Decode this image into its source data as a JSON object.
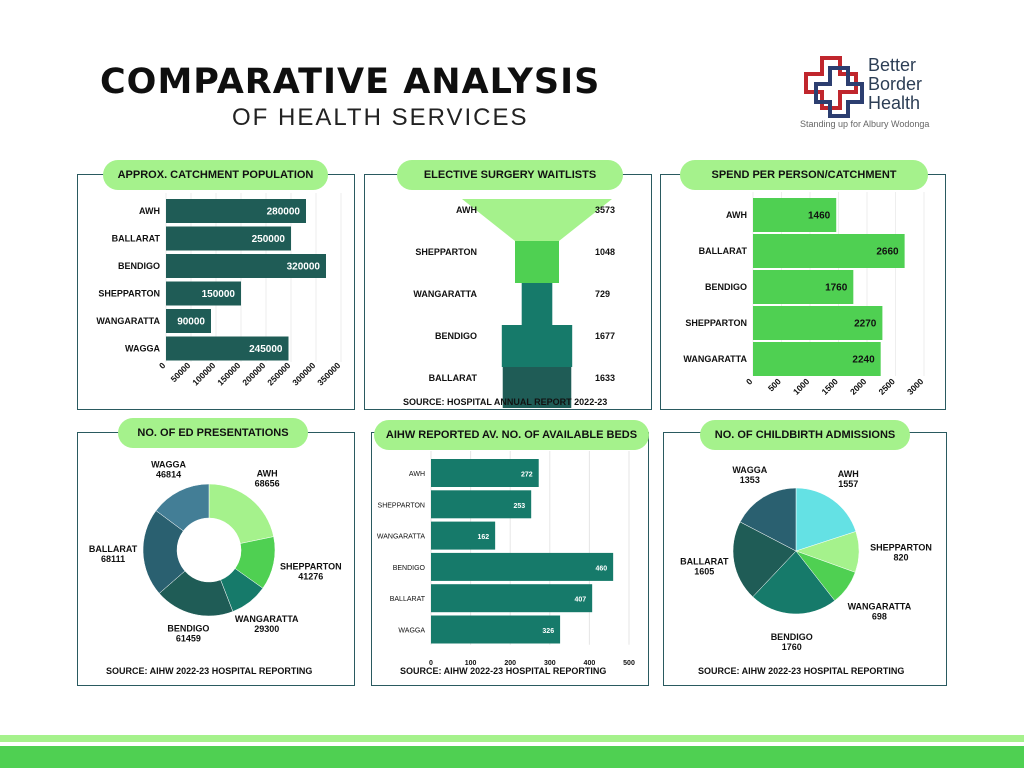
{
  "header": {
    "title": "COMPARATIVE ANALYSIS",
    "subtitle": "OF HEALTH SERVICES"
  },
  "logo": {
    "line1": "Better",
    "line2": "Border",
    "line3": "Health",
    "tagline": "Standing up for Albury Wodonga"
  },
  "colors": {
    "dark": "#1f5c56",
    "teal": "#167a6a",
    "green": "#4fd052",
    "light_green": "#a5f28c",
    "cyan": "#64e1e4",
    "slate": "#2a6070",
    "steel": "#437e96"
  },
  "chart_data": [
    {
      "id": "catchment",
      "type": "bar",
      "orientation": "horizontal",
      "title": "APPROX. CATCHMENT POPULATION",
      "categories": [
        "AWH",
        "BALLARAT",
        "BENDIGO",
        "SHEPPARTON",
        "WANGARATTA",
        "WAGGA"
      ],
      "values": [
        280000,
        250000,
        320000,
        150000,
        90000,
        245000
      ],
      "value_labels": [
        "280000",
        "250000",
        "320000",
        "150000",
        "90000",
        "245000"
      ],
      "ticks": [
        0,
        50000,
        100000,
        150000,
        200000,
        250000,
        300000,
        350000
      ],
      "tick_labels": [
        "0",
        "50000",
        "100000",
        "150000",
        "200000",
        "250000",
        "300000",
        "350000"
      ],
      "xlim": [
        0,
        350000
      ]
    },
    {
      "id": "waitlists",
      "type": "funnel",
      "title": "ELECTIVE SURGERY WAITLISTS",
      "categories": [
        "AWH",
        "SHEPPARTON",
        "WANGARATTA",
        "BENDIGO",
        "BALLARAT"
      ],
      "values": [
        3573,
        1048,
        729,
        1677,
        1633
      ],
      "value_labels": [
        "3573",
        "1048",
        "729",
        "1677",
        "1633"
      ],
      "source": "SOURCE: HOSPITAL ANNUAL REPORT 2022-23"
    },
    {
      "id": "spend",
      "type": "bar",
      "orientation": "horizontal",
      "title": "SPEND PER PERSON/CATCHMENT",
      "categories": [
        "AWH",
        "BALLARAT",
        "BENDIGO",
        "SHEPPARTON",
        "WANGARATTA"
      ],
      "values": [
        1460,
        2660,
        1760,
        2270,
        2240
      ],
      "value_labels": [
        "1460",
        "2660",
        "1760",
        "2270",
        "2240"
      ],
      "ticks": [
        0,
        500,
        1000,
        1500,
        2000,
        2500,
        3000
      ],
      "tick_labels": [
        "0",
        "500",
        "1000",
        "1500",
        "2000",
        "2500",
        "3000"
      ],
      "xlim": [
        0,
        3000
      ]
    },
    {
      "id": "ed",
      "type": "pie",
      "donut": true,
      "title": "NO. OF ED PRESENTATIONS",
      "slices": [
        {
          "name": "AWH",
          "value": 68656,
          "label": "68656"
        },
        {
          "name": "SHEPPARTON",
          "value": 41276,
          "label": "41276"
        },
        {
          "name": "WANGARATTA",
          "value": 29300,
          "label": "29300"
        },
        {
          "name": "BENDIGO",
          "value": 61459,
          "label": "61459"
        },
        {
          "name": "BALLARAT",
          "value": 68111,
          "label": "68111"
        },
        {
          "name": "WAGGA",
          "value": 46814,
          "label": "46814"
        }
      ],
      "source": "SOURCE: AIHW 2022-23 HOSPITAL REPORTING"
    },
    {
      "id": "beds",
      "type": "bar",
      "orientation": "horizontal",
      "title": "AIHW REPORTED AV. NO. OF AVAILABLE BEDS",
      "categories": [
        "AWH",
        "SHEPPARTON",
        "WANGARATTA",
        "BENDIGO",
        "BALLARAT",
        "WAGGA"
      ],
      "values": [
        272,
        253,
        162,
        460,
        407,
        326
      ],
      "value_labels": [
        "272",
        "253",
        "162",
        "460",
        "407",
        "326"
      ],
      "ticks": [
        0,
        100,
        200,
        300,
        400,
        500
      ],
      "tick_labels": [
        "0",
        "100",
        "200",
        "300",
        "400",
        "500"
      ],
      "xlim": [
        0,
        500
      ],
      "grid": true,
      "source": "SOURCE: AIHW 2022-23 HOSPITAL REPORTING"
    },
    {
      "id": "childbirth",
      "type": "pie",
      "donut": false,
      "title": "NO. OF CHILDBIRTH ADMISSIONS",
      "slices": [
        {
          "name": "AWH",
          "value": 1557,
          "label": "1557"
        },
        {
          "name": "SHEPPARTON",
          "value": 820,
          "label": "820"
        },
        {
          "name": "WANGARATTA",
          "value": 698,
          "label": "698"
        },
        {
          "name": "BENDIGO",
          "value": 1760,
          "label": "1760"
        },
        {
          "name": "BALLARAT",
          "value": 1605,
          "label": "1605"
        },
        {
          "name": "WAGGA",
          "value": 1353,
          "label": "1353"
        }
      ],
      "source": "SOURCE: AIHW 2022-23 HOSPITAL REPORTING"
    }
  ]
}
